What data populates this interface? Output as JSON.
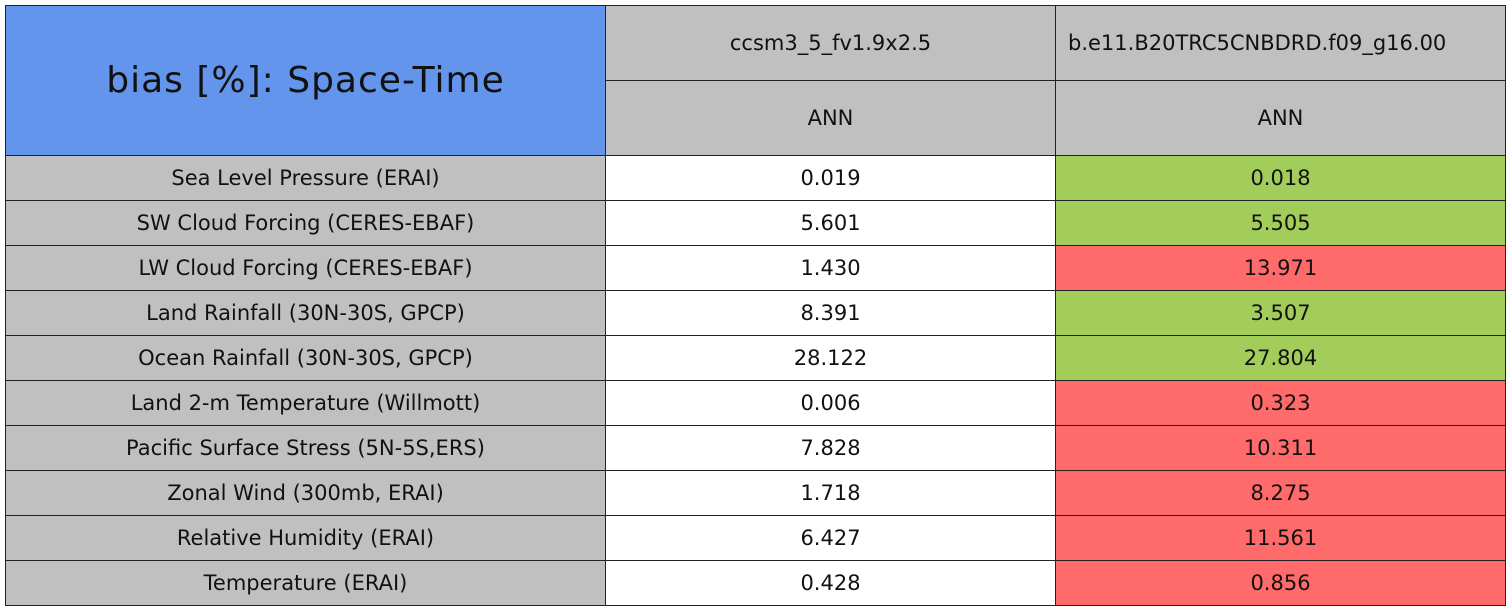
{
  "header": {
    "title": "bias [%]: Space-Time",
    "columns": [
      {
        "name": "ccsm3_5_fv1.9x2.5",
        "season": "ANN"
      },
      {
        "name": "b.e11.B20TRC5CNBDRD.f09_g16.00",
        "season": "ANN"
      }
    ]
  },
  "table": {
    "rows": [
      {
        "label": "Sea Level Pressure (ERAI)",
        "values": [
          "0.019",
          "0.018"
        ],
        "colors": [
          "#ffffff",
          "#a2cd5a"
        ]
      },
      {
        "label": "SW Cloud Forcing (CERES-EBAF)",
        "values": [
          "5.601",
          "5.505"
        ],
        "colors": [
          "#ffffff",
          "#a2cd5a"
        ]
      },
      {
        "label": "LW Cloud Forcing (CERES-EBAF)",
        "values": [
          "1.430",
          "13.971"
        ],
        "colors": [
          "#ffffff",
          "#ff6a6a"
        ]
      },
      {
        "label": "Land Rainfall (30N-30S, GPCP)",
        "values": [
          "8.391",
          "3.507"
        ],
        "colors": [
          "#ffffff",
          "#a2cd5a"
        ]
      },
      {
        "label": "Ocean Rainfall (30N-30S, GPCP)",
        "values": [
          "28.122",
          "27.804"
        ],
        "colors": [
          "#ffffff",
          "#a2cd5a"
        ]
      },
      {
        "label": "Land 2-m Temperature (Willmott)",
        "values": [
          "0.006",
          "0.323"
        ],
        "colors": [
          "#ffffff",
          "#ff6a6a"
        ]
      },
      {
        "label": "Pacific Surface Stress (5N-5S,ERS)",
        "values": [
          "7.828",
          "10.311"
        ],
        "colors": [
          "#ffffff",
          "#ff6a6a"
        ]
      },
      {
        "label": "Zonal Wind (300mb, ERAI)",
        "values": [
          "1.718",
          "8.275"
        ],
        "colors": [
          "#ffffff",
          "#ff6a6a"
        ]
      },
      {
        "label": "Relative Humidity (ERAI)",
        "values": [
          "6.427",
          "11.561"
        ],
        "colors": [
          "#ffffff",
          "#ff6a6a"
        ]
      },
      {
        "label": "Temperature (ERAI)",
        "values": [
          "0.428",
          "0.856"
        ],
        "colors": [
          "#ffffff",
          "#ff6a6a"
        ]
      }
    ]
  }
}
